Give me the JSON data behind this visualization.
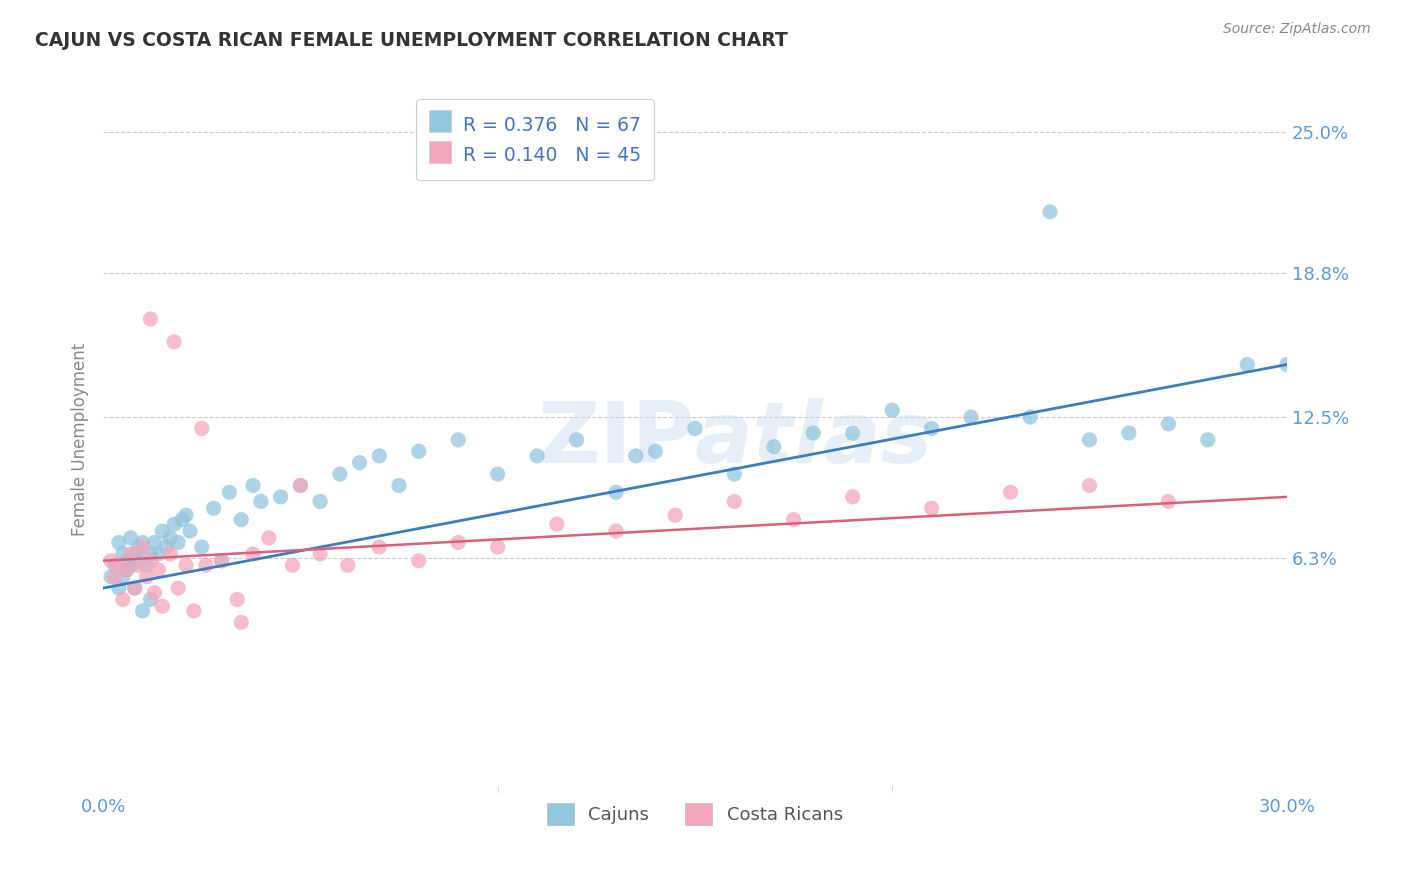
{
  "title": "CAJUN VS COSTA RICAN FEMALE UNEMPLOYMENT CORRELATION CHART",
  "source_text": "Source: ZipAtlas.com",
  "ylabel": "Female Unemployment",
  "xlim": [
    0.0,
    0.3
  ],
  "ylim": [
    -0.04,
    0.27
  ],
  "ytick_vals": [
    0.063,
    0.125,
    0.188,
    0.25
  ],
  "ytick_labels": [
    "6.3%",
    "12.5%",
    "18.8%",
    "25.0%"
  ],
  "xtick_vals": [
    0.0,
    0.3
  ],
  "xtick_labels": [
    "0.0%",
    "30.0%"
  ],
  "cajun_R": 0.376,
  "cajun_N": 67,
  "costarica_R": 0.14,
  "costarica_N": 45,
  "cajun_color": "#92c5de",
  "cajun_line_color": "#3a7ebf",
  "costarica_color": "#f4a6bc",
  "costarica_line_color": "#d9607a",
  "legend_text_color": "#4472c4",
  "background_color": "#ffffff",
  "grid_color": "#bbbbbb",
  "title_color": "#333333",
  "tick_color": "#5b9bd5",
  "cajun_line_y0": 0.05,
  "cajun_line_y1": 0.148,
  "costarica_line_y0": 0.062,
  "costarica_line_y1": 0.09,
  "cajun_x": [
    0.002,
    0.003,
    0.004,
    0.004,
    0.005,
    0.005,
    0.006,
    0.006,
    0.007,
    0.007,
    0.008,
    0.008,
    0.009,
    0.009,
    0.01,
    0.01,
    0.011,
    0.012,
    0.012,
    0.013,
    0.014,
    0.015,
    0.016,
    0.017,
    0.018,
    0.019,
    0.02,
    0.021,
    0.022,
    0.025,
    0.028,
    0.03,
    0.032,
    0.035,
    0.038,
    0.04,
    0.045,
    0.05,
    0.055,
    0.06,
    0.065,
    0.07,
    0.075,
    0.08,
    0.09,
    0.1,
    0.11,
    0.12,
    0.13,
    0.14,
    0.15,
    0.16,
    0.17,
    0.18,
    0.19,
    0.2,
    0.21,
    0.22,
    0.235,
    0.25,
    0.26,
    0.27,
    0.28,
    0.29,
    0.3,
    0.24,
    0.135
  ],
  "cajun_y": [
    0.055,
    0.06,
    0.05,
    0.07,
    0.055,
    0.065,
    0.062,
    0.058,
    0.06,
    0.072,
    0.065,
    0.05,
    0.068,
    0.062,
    0.07,
    0.04,
    0.06,
    0.065,
    0.045,
    0.07,
    0.065,
    0.075,
    0.068,
    0.072,
    0.078,
    0.07,
    0.08,
    0.082,
    0.075,
    0.068,
    0.085,
    0.062,
    0.092,
    0.08,
    0.095,
    0.088,
    0.09,
    0.095,
    0.088,
    0.1,
    0.105,
    0.108,
    0.095,
    0.11,
    0.115,
    0.1,
    0.108,
    0.115,
    0.092,
    0.11,
    0.12,
    0.1,
    0.112,
    0.118,
    0.118,
    0.128,
    0.12,
    0.125,
    0.125,
    0.115,
    0.118,
    0.122,
    0.115,
    0.148,
    0.148,
    0.215,
    0.108
  ],
  "costarica_x": [
    0.002,
    0.003,
    0.004,
    0.005,
    0.006,
    0.007,
    0.008,
    0.009,
    0.01,
    0.011,
    0.012,
    0.013,
    0.014,
    0.015,
    0.017,
    0.019,
    0.021,
    0.023,
    0.026,
    0.03,
    0.034,
    0.038,
    0.042,
    0.048,
    0.055,
    0.062,
    0.07,
    0.08,
    0.09,
    0.1,
    0.115,
    0.13,
    0.145,
    0.16,
    0.175,
    0.19,
    0.21,
    0.23,
    0.25,
    0.27,
    0.012,
    0.018,
    0.025,
    0.035,
    0.05
  ],
  "costarica_y": [
    0.062,
    0.055,
    0.06,
    0.045,
    0.058,
    0.065,
    0.05,
    0.06,
    0.068,
    0.055,
    0.062,
    0.048,
    0.058,
    0.042,
    0.065,
    0.05,
    0.06,
    0.04,
    0.06,
    0.062,
    0.045,
    0.065,
    0.072,
    0.06,
    0.065,
    0.06,
    0.068,
    0.062,
    0.07,
    0.068,
    0.078,
    0.075,
    0.082,
    0.088,
    0.08,
    0.09,
    0.085,
    0.092,
    0.095,
    0.088,
    0.168,
    0.158,
    0.12,
    0.035,
    0.095
  ]
}
